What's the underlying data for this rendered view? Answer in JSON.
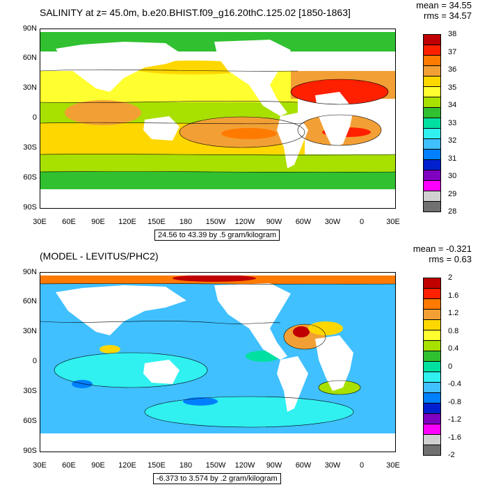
{
  "panels": {
    "top": {
      "title": "SALINITY at z=  45.0m, b.e20.BHIST.f09_g16.20thC.125.02 [1850-1863]",
      "mean": "mean = 34.55",
      "rms": "rms = 34.57",
      "range_text": "24.56 to 43.39 by .5 gram/kilogram",
      "colorbar": {
        "labels": [
          "38",
          "37",
          "36",
          "35",
          "34",
          "33",
          "32",
          "31",
          "30",
          "29",
          "28"
        ],
        "colors": [
          "#c00000",
          "#ff2000",
          "#ff7a00",
          "#f2a035",
          "#ffd700",
          "#ffff30",
          "#a8e000",
          "#30c030",
          "#00e0a0",
          "#30f0f0",
          "#40c0ff",
          "#0080ff",
          "#0020d0",
          "#8000c0",
          "#ff00ff",
          "#d0d0d0",
          "#707070"
        ]
      }
    },
    "bottom": {
      "title": "(MODEL - LEVITUS/PHC2)",
      "mean": "mean = -0.321",
      "rms": "rms = 0.63",
      "range_text": "-6.373 to 3.574 by .2 gram/kilogram",
      "colorbar": {
        "labels": [
          "2",
          "1.6",
          "1.2",
          "0.8",
          "0.4",
          "0",
          "-0.4",
          "-0.8",
          "-1.2",
          "-1.6",
          "-2"
        ],
        "colors": [
          "#c00000",
          "#ff2000",
          "#ff7a00",
          "#f2a035",
          "#ffd700",
          "#ffff30",
          "#a8e000",
          "#30c030",
          "#00e0a0",
          "#30f0f0",
          "#40c0ff",
          "#0080ff",
          "#0020d0",
          "#8000c0",
          "#ff00ff",
          "#d0d0d0",
          "#707070"
        ]
      }
    }
  },
  "axes": {
    "lat_labels": [
      "90N",
      "60N",
      "30N",
      "0",
      "30S",
      "60S",
      "90S"
    ],
    "lon_labels": [
      "30E",
      "60E",
      "90E",
      "120E",
      "150E",
      "180",
      "150W",
      "120W",
      "90W",
      "60W",
      "30W",
      "0",
      "30E"
    ]
  }
}
